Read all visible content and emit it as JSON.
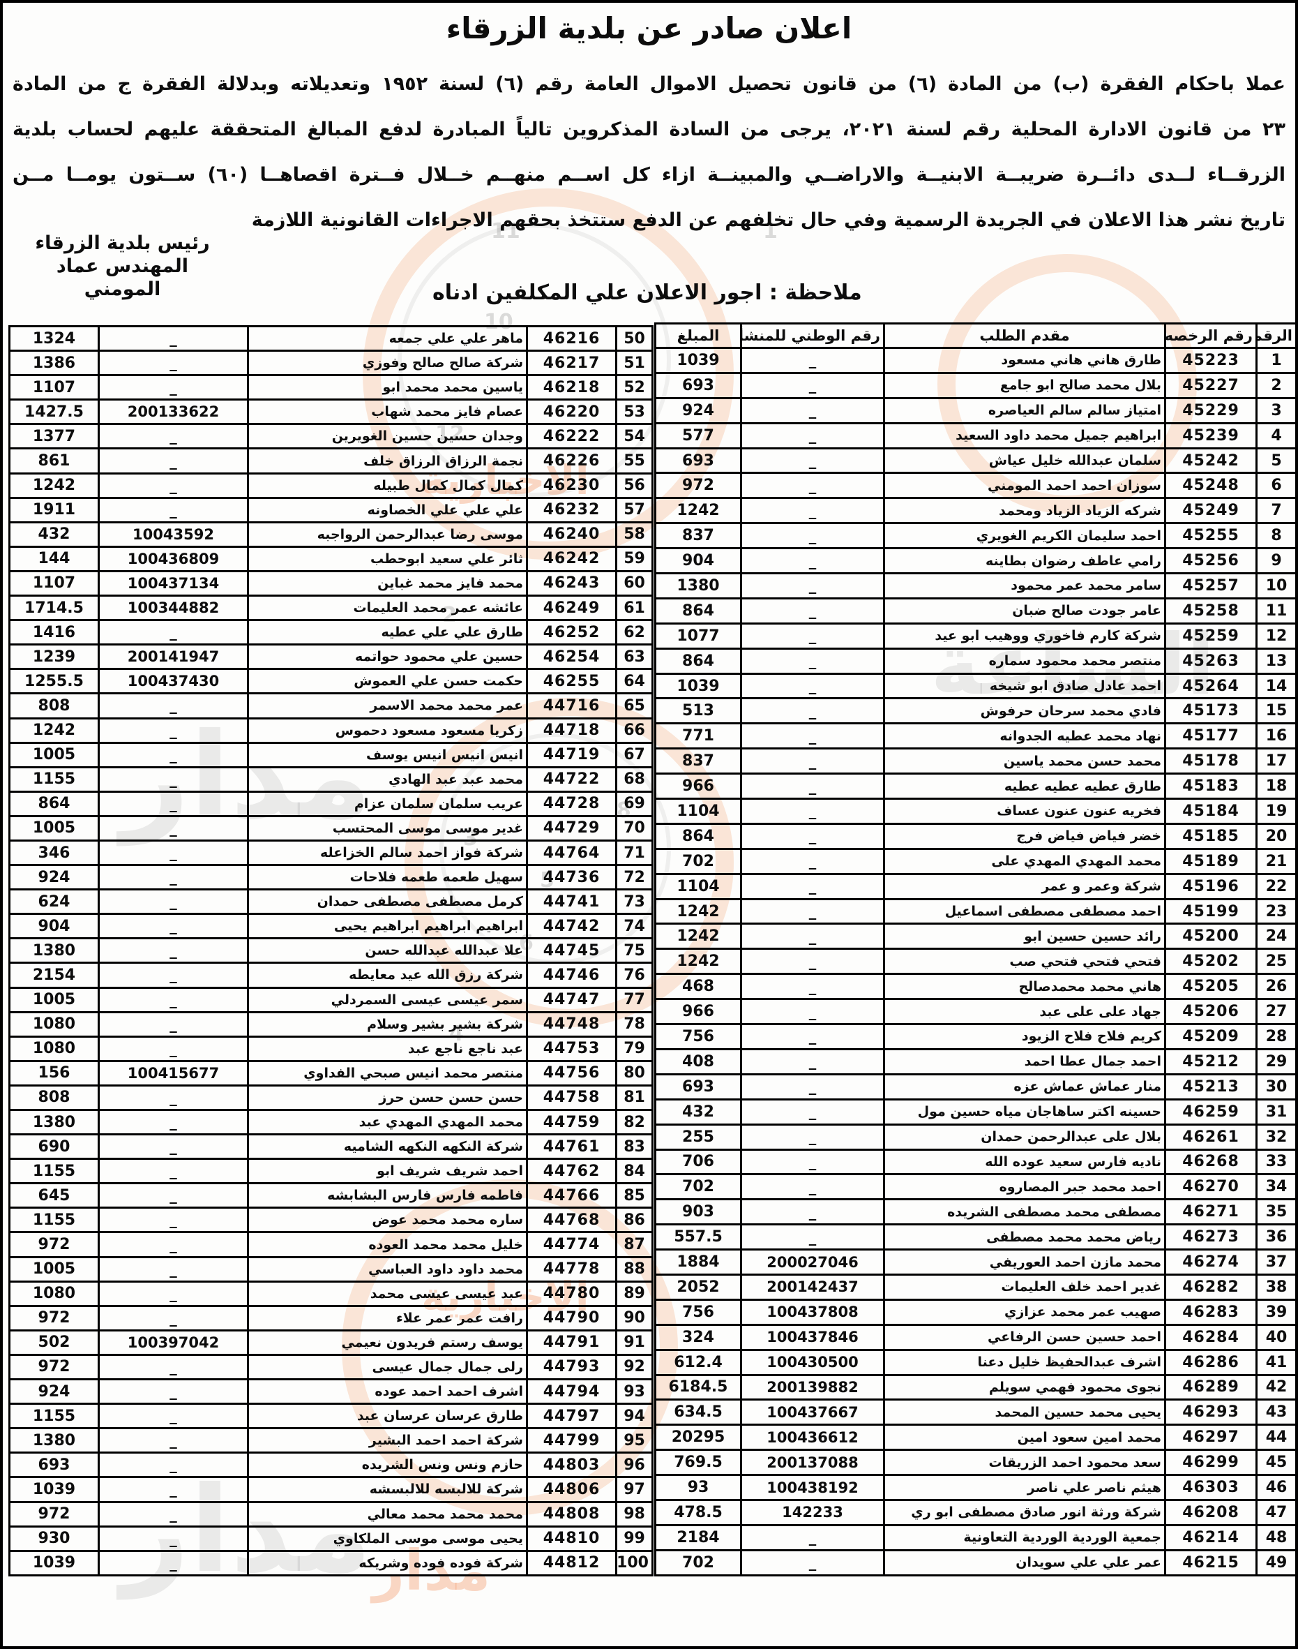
{
  "page": {
    "title": "اعلان صادر عن بلدية الزرقاء",
    "paragraph_lines": [
      "عملا باحكام الفقرة (ب) من المادة (٦) من قانون تحصيل الاموال العامة رقم (٦) لسنة ١٩٥٢ وتعديلاته وبدلالة الفقرة ج من المادة",
      "٢٣ من قانون الادارة المحلية رقم لسنة ٢٠٢١، يرجى من السادة المذكروين تالياً المبادرة لدفع المبالغ المتحققة عليهم لحساب بلدية",
      "الزرقــاء لــدى دائــرة ضريبــة الابنيــة والاراضــي والمبينــة ازاء كل اســم منهــم خــلال فــترة اقصاهــا (٦٠) ســتون يومــا مــن",
      "تاريخ نشر هذا الاعلان في الجريدة الرسمية وفي حال تخلفهم عن الدفع ستتخذ بحقهم الاجراءات القانونية اللازمة"
    ],
    "signature_lines": [
      "رئيس بلدية الزرقاء",
      "المهندس عماد المومني"
    ],
    "note": "ملاحظة : اجور الاعلان علي المكلفين ادناه"
  },
  "watermark": {
    "brand_text_1": "مدار",
    "brand_text_2": "الساعة",
    "brand_text_3": "الاخبارية",
    "accent_color": "#f0b180",
    "clock_digits": [
      "12",
      "1",
      "2",
      "3",
      "4",
      "5",
      "6",
      "8",
      "10",
      "11"
    ]
  },
  "tables": {
    "headers": {
      "num": "الرقم",
      "license": "رقم الرخصه",
      "applicant": "مقدم الطلب",
      "national": "رقم الوطني للمنشأه",
      "amount": "المبلغ"
    },
    "right": {
      "has_header": true,
      "rows": [
        [
          "1",
          "45223",
          "طارق هاني هاني مسعود",
          "_",
          "1039"
        ],
        [
          "2",
          "45227",
          "بلال محمد صالح ابو جامع",
          "_",
          "693"
        ],
        [
          "3",
          "45229",
          "امتياز سالم سالم العياصره",
          "_",
          "924"
        ],
        [
          "4",
          "45239",
          "ابراهيم جميل محمد داود السعيد",
          "_",
          "577"
        ],
        [
          "5",
          "45242",
          "سلمان عبدالله خليل عياش",
          "_",
          "693"
        ],
        [
          "6",
          "45248",
          "سوزان احمد احمد المومني",
          "_",
          "972"
        ],
        [
          "7",
          "45249",
          "شركه الزياد الزياد ومحمد",
          "_",
          "1242"
        ],
        [
          "8",
          "45255",
          "احمد سليمان الكريم الغويري",
          "_",
          "837"
        ],
        [
          "9",
          "45256",
          "رامي عاطف رضوان بطاينه",
          "_",
          "904"
        ],
        [
          "10",
          "45257",
          "سامر محمد عمر محمود",
          "_",
          "1380"
        ],
        [
          "11",
          "45258",
          "عامر جودت صالح ضبان",
          "_",
          "864"
        ],
        [
          "12",
          "45259",
          "شركة كارم فاخوري ووهيب ابو عيد",
          "_",
          "1077"
        ],
        [
          "13",
          "45263",
          "منتصر محمد محمود سماره",
          "_",
          "864"
        ],
        [
          "14",
          "45264",
          "احمد عادل صادق ابو شيخه",
          "_",
          "1039"
        ],
        [
          "15",
          "45173",
          "فادي محمد سرحان حرفوش",
          "_",
          "513"
        ],
        [
          "16",
          "45177",
          "نهاد محمد عطيه الجدوانه",
          "_",
          "771"
        ],
        [
          "17",
          "45178",
          "محمد حسن محمد ياسين",
          "_",
          "837"
        ],
        [
          "18",
          "45183",
          "طارق عطيه عطيه عطيه",
          "_",
          "966"
        ],
        [
          "19",
          "45184",
          "فخريه عنون عنون عساف",
          "_",
          "1104"
        ],
        [
          "20",
          "45185",
          "خضر فياض فياض فرج",
          "_",
          "864"
        ],
        [
          "21",
          "45189",
          "محمد المهدي المهدي على",
          "_",
          "702"
        ],
        [
          "22",
          "45196",
          "شركة وعمر و عمر",
          "_",
          "1104"
        ],
        [
          "23",
          "45199",
          "احمد مصطفى مصطفى اسماعيل",
          "_",
          "1242"
        ],
        [
          "24",
          "45200",
          "رائد حسين حسين ابو",
          "_",
          "1242"
        ],
        [
          "25",
          "45202",
          "فتحي فتحي فتحي صب",
          "_",
          "1242"
        ],
        [
          "26",
          "45205",
          "هاني محمد محمدصالح",
          "_",
          "468"
        ],
        [
          "27",
          "45206",
          "جهاد على على عبد",
          "_",
          "966"
        ],
        [
          "28",
          "45209",
          "كريم فلاح فلاح الزيود",
          "_",
          "756"
        ],
        [
          "29",
          "45212",
          "احمد جمال عطا احمد",
          "_",
          "408"
        ],
        [
          "30",
          "45213",
          "منار عماش عماش عزه",
          "_",
          "693"
        ],
        [
          "31",
          "46259",
          "حسينه اكتر ساهاجان مياه حسين مول",
          "_",
          "432"
        ],
        [
          "32",
          "46261",
          "بلال على عبدالرحمن حمدان",
          "_",
          "255"
        ],
        [
          "33",
          "46268",
          "ناديه فارس سعيد عوده الله",
          "_",
          "706"
        ],
        [
          "34",
          "46270",
          "احمد محمد جبر المصاروه",
          "_",
          "702"
        ],
        [
          "35",
          "46271",
          "مصطفى محمد مصطفى الشريده",
          "_",
          "903"
        ],
        [
          "36",
          "46273",
          "رياض محمد محمد مصطفى",
          "_",
          "557.5"
        ],
        [
          "37",
          "46274",
          "محمد مازن احمد العوريفي",
          "200027046",
          "1884"
        ],
        [
          "38",
          "46282",
          "غدير احمد خلف العليمات",
          "200142437",
          "2052"
        ],
        [
          "39",
          "46283",
          "صهيب عمر محمد عزازي",
          "100437808",
          "756"
        ],
        [
          "40",
          "46284",
          "احمد حسين حسن الرفاعي",
          "100437846",
          "324"
        ],
        [
          "41",
          "46286",
          "اشرف عبدالحفيظ خليل دعنا",
          "100430500",
          "612.4"
        ],
        [
          "42",
          "46289",
          "نجوى محمود فهمي سويلم",
          "200139882",
          "6184.5"
        ],
        [
          "43",
          "46293",
          "يحيى محمد حسين المحمد",
          "100437667",
          "634.5"
        ],
        [
          "44",
          "46297",
          "محمد امين سعود امين",
          "100436612",
          "20295"
        ],
        [
          "45",
          "46299",
          "سعد محمود احمد الزريقات",
          "200137088",
          "769.5"
        ],
        [
          "46",
          "46303",
          "هيثم ناصر علي ناصر",
          "100438192",
          "93"
        ],
        [
          "47",
          "46208",
          "شركة ورثة انور صادق مصطفى ابو ري",
          "142233",
          "478.5"
        ],
        [
          "48",
          "46214",
          "جمعية الوردية الوردية التعاونية",
          "_",
          "2184"
        ],
        [
          "49",
          "46215",
          "عمر علي علي سويدان",
          "_",
          "702"
        ]
      ]
    },
    "left": {
      "has_header": false,
      "rows": [
        [
          "50",
          "46216",
          "ماهر علي علي جمعه",
          "_",
          "1324"
        ],
        [
          "51",
          "46217",
          "شركة صالح صالح وفوزي",
          "_",
          "1386"
        ],
        [
          "52",
          "46218",
          "ياسين محمد محمد ابو",
          "_",
          "1107"
        ],
        [
          "53",
          "46220",
          "عصام فايز محمد شهاب",
          "200133622",
          "1427.5"
        ],
        [
          "54",
          "46222",
          "وجدان حسين حسين الغويرين",
          "_",
          "1377"
        ],
        [
          "55",
          "46226",
          "نجمة الرزاق الرزاق خلف",
          "_",
          "861"
        ],
        [
          "56",
          "46230",
          "كمال كمال كمال طبيله",
          "_",
          "1242"
        ],
        [
          "57",
          "46232",
          "علي علي علي الخصاونه",
          "_",
          "1911"
        ],
        [
          "58",
          "46240",
          "موسى رضا عبدالرحمن الرواجبه",
          "10043592",
          "432"
        ],
        [
          "59",
          "46242",
          "ثائر علي سعيد ابوحطب",
          "100436809",
          "144"
        ],
        [
          "60",
          "46243",
          "محمد فايز محمد غباين",
          "100437134",
          "1107"
        ],
        [
          "61",
          "46249",
          "عائشه عمر محمد العليمات",
          "100344882",
          "1714.5"
        ],
        [
          "62",
          "46252",
          "طارق علي علي عطيه",
          "_",
          "1416"
        ],
        [
          "63",
          "46254",
          "حسين علي محمود حواتمه",
          "200141947",
          "1239"
        ],
        [
          "64",
          "46255",
          "حكمت حسن علي العموش",
          "100437430",
          "1255.5"
        ],
        [
          "65",
          "44716",
          "عمر محمد محمد الاسمر",
          "_",
          "808"
        ],
        [
          "66",
          "44718",
          "زكريا مسعود مسعود دحموس",
          "_",
          "1242"
        ],
        [
          "67",
          "44719",
          "انيس انيس انيس يوسف",
          "_",
          "1005"
        ],
        [
          "68",
          "44722",
          "محمد عبد عبد الهادي",
          "_",
          "1155"
        ],
        [
          "69",
          "44728",
          "عريب سلمان سلمان عزام",
          "_",
          "864"
        ],
        [
          "70",
          "44729",
          "غدير موسى موسى المحتسب",
          "_",
          "1005"
        ],
        [
          "71",
          "44764",
          "شركة فواز احمد سالم الخزاعله",
          "_",
          "346"
        ],
        [
          "72",
          "44736",
          "سهيل طعمه طعمه فلاحات",
          "_",
          "924"
        ],
        [
          "73",
          "44741",
          "كرمل مصطفى مصطفى حمدان",
          "_",
          "624"
        ],
        [
          "74",
          "44742",
          "ابراهيم ابراهيم ابراهيم يحيى",
          "_",
          "904"
        ],
        [
          "75",
          "44745",
          "علا عبدالله عبدالله حسن",
          "_",
          "1380"
        ],
        [
          "76",
          "44746",
          "شركة رزق الله عيد معايطه",
          "_",
          "2154"
        ],
        [
          "77",
          "44747",
          "سمر عيسى عيسى السمردلي",
          "_",
          "1005"
        ],
        [
          "78",
          "44748",
          "شركة بشير بشير وسلام",
          "_",
          "1080"
        ],
        [
          "79",
          "44753",
          "عبد ناجع ناجع عبد",
          "_",
          "1080"
        ],
        [
          "80",
          "44756",
          "منتصر محمد انيس صبحي الفداوي",
          "100415677",
          "156"
        ],
        [
          "81",
          "44758",
          "حسن حسن حسن حرز",
          "_",
          "808"
        ],
        [
          "82",
          "44759",
          "محمد المهدي المهدي عبد",
          "_",
          "1380"
        ],
        [
          "83",
          "44761",
          "شركة النكهه النكهه الشاميه",
          "_",
          "690"
        ],
        [
          "84",
          "44762",
          "احمد شريف شريف ابو",
          "_",
          "1155"
        ],
        [
          "85",
          "44766",
          "فاطمه فارس فارس البشابشه",
          "_",
          "645"
        ],
        [
          "86",
          "44768",
          "ساره محمد محمد عوض",
          "_",
          "1155"
        ],
        [
          "87",
          "44774",
          "خليل محمد محمد العوده",
          "_",
          "972"
        ],
        [
          "88",
          "44778",
          "محمد داود داود العباسي",
          "_",
          "1005"
        ],
        [
          "89",
          "44780",
          "عبد عيسى عيسى محمد",
          "_",
          "1080"
        ],
        [
          "90",
          "44790",
          "رافت عمر عمر علاء",
          "_",
          "972"
        ],
        [
          "91",
          "44791",
          "يوسف رستم فريدون نعيمي",
          "100397042",
          "502"
        ],
        [
          "92",
          "44793",
          "رلى جمال جمال عيسى",
          "_",
          "972"
        ],
        [
          "93",
          "44794",
          "اشرف احمد احمد عوده",
          "_",
          "924"
        ],
        [
          "94",
          "44797",
          "طارق عرسان عرسان عبد",
          "_",
          "1155"
        ],
        [
          "95",
          "44799",
          "شركة احمد احمد البشير",
          "_",
          "1380"
        ],
        [
          "96",
          "44803",
          "حازم ونس ونس الشريده",
          "_",
          "693"
        ],
        [
          "97",
          "44806",
          "شركة للالبسه للالبسشه",
          "_",
          "1039"
        ],
        [
          "98",
          "44808",
          "محمد محمد محمد معالي",
          "_",
          "972"
        ],
        [
          "99",
          "44810",
          "يحيى موسى موسى الملكاوي",
          "_",
          "930"
        ],
        [
          "100",
          "44812",
          "شركة فوده فوده وشريكه",
          "_",
          "1039"
        ]
      ]
    }
  }
}
